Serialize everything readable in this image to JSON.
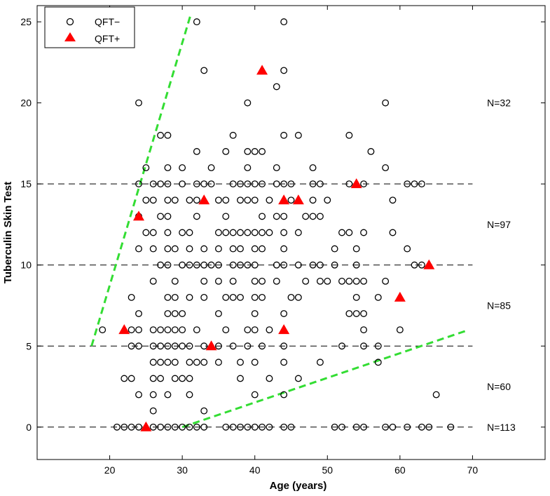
{
  "chart_data": {
    "type": "scatter",
    "title": "",
    "xlabel": "Age (years)",
    "ylabel": "Tuberculin Skin Test",
    "xlim": [
      10,
      80
    ],
    "ylim": [
      -2,
      26
    ],
    "xticks": [
      20,
      30,
      40,
      50,
      60,
      70
    ],
    "yticks": [
      0,
      5,
      10,
      15,
      20,
      25
    ],
    "legend": {
      "placement": "top-left",
      "entries": [
        {
          "label": "QFT−",
          "marker": "open-circle",
          "color": "#000000"
        },
        {
          "label": "QFT+",
          "marker": "filled-triangle",
          "color": "#ff0000"
        }
      ]
    },
    "colors": {
      "negative": "#000000",
      "positive": "#ff0000",
      "boundary": "#33dd33",
      "reference": "#000000"
    },
    "reference_lines": {
      "y_values": [
        0,
        5,
        10,
        15
      ],
      "x_range": [
        10,
        70
      ],
      "style": "dashed"
    },
    "boundary_lines": [
      {
        "points": [
          [
            17.5,
            5
          ],
          [
            31.2,
            25.5
          ]
        ],
        "style": "dashed"
      },
      {
        "points": [
          [
            30,
            0
          ],
          [
            69.5,
            6
          ]
        ],
        "style": "dashed"
      }
    ],
    "annotations": [
      {
        "text": "N=32",
        "x": 72,
        "y": 20
      },
      {
        "text": "N=97",
        "x": 72,
        "y": 12.5
      },
      {
        "text": "N=85",
        "x": 72,
        "y": 7.5
      },
      {
        "text": "N=60",
        "x": 72,
        "y": 2.5
      },
      {
        "text": "N=113",
        "x": 72,
        "y": 0
      }
    ],
    "series": [
      {
        "name": "QFT−",
        "points": [
          [
            32,
            25
          ],
          [
            44,
            25
          ],
          [
            33,
            22
          ],
          [
            44,
            22
          ],
          [
            43,
            21
          ],
          [
            24,
            20
          ],
          [
            39,
            20
          ],
          [
            58,
            20
          ],
          [
            27,
            18
          ],
          [
            28,
            18
          ],
          [
            37,
            18
          ],
          [
            44,
            18
          ],
          [
            46,
            18
          ],
          [
            53,
            18
          ],
          [
            32,
            17
          ],
          [
            36,
            17
          ],
          [
            39,
            17
          ],
          [
            40,
            17
          ],
          [
            41,
            17
          ],
          [
            56,
            17
          ],
          [
            25,
            16
          ],
          [
            28,
            16
          ],
          [
            30,
            16
          ],
          [
            34,
            16
          ],
          [
            39,
            16
          ],
          [
            43,
            16
          ],
          [
            48,
            16
          ],
          [
            58,
            16
          ],
          [
            24,
            15
          ],
          [
            26,
            15
          ],
          [
            27,
            15
          ],
          [
            28,
            15
          ],
          [
            30,
            15
          ],
          [
            32,
            15
          ],
          [
            33,
            15
          ],
          [
            34,
            15
          ],
          [
            37,
            15
          ],
          [
            38,
            15
          ],
          [
            39,
            15
          ],
          [
            40,
            15
          ],
          [
            41,
            15
          ],
          [
            43,
            15
          ],
          [
            44,
            15
          ],
          [
            45,
            15
          ],
          [
            48,
            15
          ],
          [
            49,
            15
          ],
          [
            53,
            15
          ],
          [
            55,
            15
          ],
          [
            61,
            15
          ],
          [
            62,
            15
          ],
          [
            63,
            15
          ],
          [
            25,
            14
          ],
          [
            26,
            14
          ],
          [
            28,
            14
          ],
          [
            29,
            14
          ],
          [
            31,
            14
          ],
          [
            32,
            14
          ],
          [
            35,
            14
          ],
          [
            36,
            14
          ],
          [
            38,
            14
          ],
          [
            39,
            14
          ],
          [
            40,
            14
          ],
          [
            42,
            14
          ],
          [
            45,
            14
          ],
          [
            48,
            14
          ],
          [
            50,
            14
          ],
          [
            59,
            14
          ],
          [
            24,
            13
          ],
          [
            27,
            13
          ],
          [
            28,
            13
          ],
          [
            32,
            13
          ],
          [
            36,
            13
          ],
          [
            41,
            13
          ],
          [
            43,
            13
          ],
          [
            44,
            13
          ],
          [
            47,
            13
          ],
          [
            48,
            13
          ],
          [
            49,
            13
          ],
          [
            25,
            12
          ],
          [
            26,
            12
          ],
          [
            28,
            12
          ],
          [
            30,
            12
          ],
          [
            31,
            12
          ],
          [
            35,
            12
          ],
          [
            36,
            12
          ],
          [
            37,
            12
          ],
          [
            38,
            12
          ],
          [
            39,
            12
          ],
          [
            40,
            12
          ],
          [
            41,
            12
          ],
          [
            42,
            12
          ],
          [
            44,
            12
          ],
          [
            46,
            12
          ],
          [
            52,
            12
          ],
          [
            53,
            12
          ],
          [
            55,
            12
          ],
          [
            59,
            12
          ],
          [
            24,
            11
          ],
          [
            26,
            11
          ],
          [
            28,
            11
          ],
          [
            29,
            11
          ],
          [
            31,
            11
          ],
          [
            33,
            11
          ],
          [
            35,
            11
          ],
          [
            37,
            11
          ],
          [
            38,
            11
          ],
          [
            40,
            11
          ],
          [
            41,
            11
          ],
          [
            44,
            11
          ],
          [
            51,
            11
          ],
          [
            54,
            11
          ],
          [
            61,
            11
          ],
          [
            27,
            10
          ],
          [
            28,
            10
          ],
          [
            30,
            10
          ],
          [
            31,
            10
          ],
          [
            32,
            10
          ],
          [
            33,
            10
          ],
          [
            34,
            10
          ],
          [
            35,
            10
          ],
          [
            37,
            10
          ],
          [
            38,
            10
          ],
          [
            39,
            10
          ],
          [
            40,
            10
          ],
          [
            43,
            10
          ],
          [
            44,
            10
          ],
          [
            46,
            10
          ],
          [
            48,
            10
          ],
          [
            49,
            10
          ],
          [
            51,
            10
          ],
          [
            54,
            10
          ],
          [
            62,
            10
          ],
          [
            63,
            10
          ],
          [
            26,
            9
          ],
          [
            29,
            9
          ],
          [
            33,
            9
          ],
          [
            35,
            9
          ],
          [
            37,
            9
          ],
          [
            40,
            9
          ],
          [
            41,
            9
          ],
          [
            43,
            9
          ],
          [
            47,
            9
          ],
          [
            49,
            9
          ],
          [
            50,
            9
          ],
          [
            52,
            9
          ],
          [
            53,
            9
          ],
          [
            54,
            9
          ],
          [
            55,
            9
          ],
          [
            58,
            9
          ],
          [
            23,
            8
          ],
          [
            28,
            8
          ],
          [
            29,
            8
          ],
          [
            31,
            8
          ],
          [
            33,
            8
          ],
          [
            36,
            8
          ],
          [
            37,
            8
          ],
          [
            38,
            8
          ],
          [
            40,
            8
          ],
          [
            41,
            8
          ],
          [
            45,
            8
          ],
          [
            46,
            8
          ],
          [
            54,
            8
          ],
          [
            57,
            8
          ],
          [
            24,
            7
          ],
          [
            28,
            7
          ],
          [
            29,
            7
          ],
          [
            30,
            7
          ],
          [
            35,
            7
          ],
          [
            40,
            7
          ],
          [
            44,
            7
          ],
          [
            53,
            7
          ],
          [
            54,
            7
          ],
          [
            55,
            7
          ],
          [
            19,
            6
          ],
          [
            23,
            6
          ],
          [
            24,
            6
          ],
          [
            26,
            6
          ],
          [
            27,
            6
          ],
          [
            28,
            6
          ],
          [
            29,
            6
          ],
          [
            30,
            6
          ],
          [
            32,
            6
          ],
          [
            36,
            6
          ],
          [
            39,
            6
          ],
          [
            40,
            6
          ],
          [
            42,
            6
          ],
          [
            60,
            6
          ],
          [
            55,
            6
          ],
          [
            23,
            5
          ],
          [
            24,
            5
          ],
          [
            26,
            5
          ],
          [
            27,
            5
          ],
          [
            28,
            5
          ],
          [
            29,
            5
          ],
          [
            30,
            5
          ],
          [
            31,
            5
          ],
          [
            33,
            5
          ],
          [
            35,
            5
          ],
          [
            37,
            5
          ],
          [
            39,
            5
          ],
          [
            41,
            5
          ],
          [
            44,
            5
          ],
          [
            52,
            5
          ],
          [
            55,
            5
          ],
          [
            57,
            5
          ],
          [
            26,
            4
          ],
          [
            27,
            4
          ],
          [
            28,
            4
          ],
          [
            29,
            4
          ],
          [
            31,
            4
          ],
          [
            32,
            4
          ],
          [
            33,
            4
          ],
          [
            35,
            4
          ],
          [
            38,
            4
          ],
          [
            40,
            4
          ],
          [
            44,
            4
          ],
          [
            49,
            4
          ],
          [
            57,
            4
          ],
          [
            22,
            3
          ],
          [
            23,
            3
          ],
          [
            26,
            3
          ],
          [
            27,
            3
          ],
          [
            29,
            3
          ],
          [
            30,
            3
          ],
          [
            31,
            3
          ],
          [
            38,
            3
          ],
          [
            42,
            3
          ],
          [
            46,
            3
          ],
          [
            24,
            2
          ],
          [
            26,
            2
          ],
          [
            28,
            2
          ],
          [
            31,
            2
          ],
          [
            40,
            2
          ],
          [
            44,
            2
          ],
          [
            65,
            2
          ],
          [
            26,
            1
          ],
          [
            33,
            1
          ],
          [
            21,
            0
          ],
          [
            22,
            0
          ],
          [
            23,
            0
          ],
          [
            24,
            0
          ],
          [
            26,
            0
          ],
          [
            27,
            0
          ],
          [
            28,
            0
          ],
          [
            29,
            0
          ],
          [
            30,
            0
          ],
          [
            31,
            0
          ],
          [
            32,
            0
          ],
          [
            33,
            0
          ],
          [
            36,
            0
          ],
          [
            37,
            0
          ],
          [
            38,
            0
          ],
          [
            39,
            0
          ],
          [
            40,
            0
          ],
          [
            41,
            0
          ],
          [
            42,
            0
          ],
          [
            44,
            0
          ],
          [
            45,
            0
          ],
          [
            51,
            0
          ],
          [
            52,
            0
          ],
          [
            54,
            0
          ],
          [
            55,
            0
          ],
          [
            58,
            0
          ],
          [
            59,
            0
          ],
          [
            61,
            0
          ],
          [
            63,
            0
          ],
          [
            64,
            0
          ],
          [
            67,
            0
          ]
        ]
      },
      {
        "name": "QFT+",
        "points": [
          [
            41,
            22
          ],
          [
            54,
            15
          ],
          [
            33,
            14
          ],
          [
            44,
            14
          ],
          [
            46,
            14
          ],
          [
            24,
            13
          ],
          [
            64,
            10
          ],
          [
            60,
            8
          ],
          [
            22,
            6
          ],
          [
            44,
            6
          ],
          [
            34,
            5
          ],
          [
            25,
            0
          ]
        ]
      }
    ]
  }
}
